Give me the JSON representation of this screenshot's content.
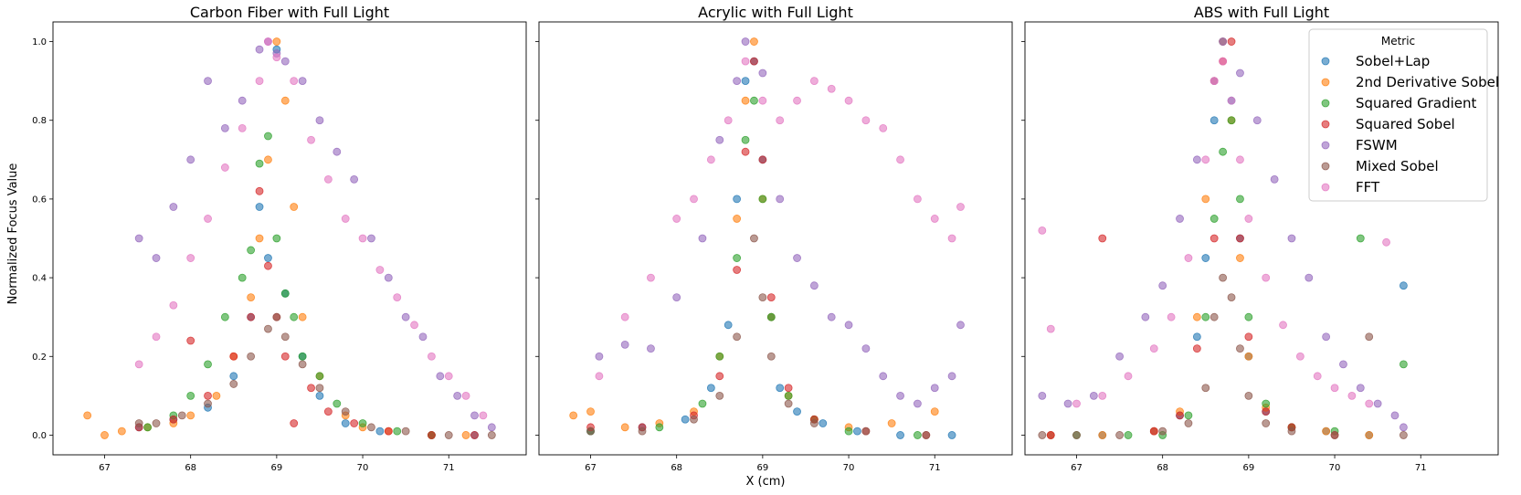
{
  "figure": {
    "ylabel": "Normalized Focus Value",
    "xlabel": "X (cm)"
  },
  "legend": {
    "title": "Metric",
    "placement": "upper-right of third panel",
    "entries": [
      {
        "name": "Sobel+Lap",
        "color": "#1f77b4"
      },
      {
        "name": "2nd Derivative Sobel",
        "color": "#ff7f0e"
      },
      {
        "name": "Squared Gradient",
        "color": "#2ca02c"
      },
      {
        "name": "Squared Sobel",
        "color": "#d62728"
      },
      {
        "name": "FSWM",
        "color": "#9467bd"
      },
      {
        "name": "Mixed Sobel",
        "color": "#8c564b"
      },
      {
        "name": "FFT",
        "color": "#e377c2"
      }
    ]
  },
  "chart_data": [
    {
      "type": "scatter",
      "title": "Carbon Fiber with Full Light",
      "xlim": [
        66.4,
        71.9
      ],
      "ylim": [
        -0.05,
        1.05
      ],
      "xticks": [
        67,
        68,
        69,
        70,
        71
      ],
      "yticks": [
        0.0,
        0.2,
        0.4,
        0.6,
        0.8,
        1.0
      ],
      "ytick_labels": [
        "0.0",
        "0.2",
        "0.4",
        "0.6",
        "0.8",
        "1.0"
      ],
      "series": [
        {
          "name": "Sobel+Lap",
          "x": [
            67.4,
            67.8,
            68.2,
            68.5,
            68.7,
            68.8,
            68.9,
            69.0,
            69.1,
            69.3,
            69.5,
            69.8,
            70.2,
            70.8,
            71.3
          ],
          "y": [
            0.02,
            0.04,
            0.07,
            0.15,
            0.3,
            0.58,
            0.45,
            0.98,
            0.36,
            0.2,
            0.1,
            0.03,
            0.01,
            0.0,
            0.0
          ]
        },
        {
          "name": "2nd Derivative Sobel",
          "x": [
            66.8,
            67.0,
            67.2,
            67.5,
            67.8,
            68.0,
            68.3,
            68.5,
            68.7,
            68.8,
            68.9,
            69.0,
            69.1,
            69.2,
            69.3,
            69.5,
            69.8,
            70.0,
            70.3,
            70.8,
            71.2
          ],
          "y": [
            0.05,
            0.0,
            0.01,
            0.02,
            0.03,
            0.05,
            0.1,
            0.2,
            0.35,
            0.5,
            0.7,
            1.0,
            0.85,
            0.58,
            0.3,
            0.15,
            0.05,
            0.02,
            0.01,
            0.0,
            0.0
          ]
        },
        {
          "name": "Squared Gradient",
          "x": [
            67.5,
            67.8,
            68.0,
            68.2,
            68.4,
            68.6,
            68.7,
            68.8,
            68.9,
            69.0,
            69.1,
            69.2,
            69.3,
            69.5,
            69.7,
            70.0,
            70.4,
            70.8
          ],
          "y": [
            0.02,
            0.05,
            0.1,
            0.18,
            0.3,
            0.4,
            0.47,
            0.69,
            0.76,
            0.5,
            0.36,
            0.3,
            0.2,
            0.15,
            0.08,
            0.03,
            0.01,
            0.0
          ]
        },
        {
          "name": "Squared Sobel",
          "x": [
            67.4,
            67.8,
            68.0,
            68.2,
            68.5,
            68.7,
            68.8,
            68.9,
            69.0,
            69.1,
            69.2,
            69.4,
            69.6,
            69.9,
            70.3,
            70.8,
            71.3
          ],
          "y": [
            0.02,
            0.04,
            0.24,
            0.1,
            0.2,
            0.3,
            0.62,
            0.43,
            0.3,
            0.2,
            0.03,
            0.12,
            0.06,
            0.03,
            0.01,
            0.0,
            0.0
          ]
        },
        {
          "name": "FSWM",
          "x": [
            67.4,
            67.6,
            67.8,
            68.0,
            68.2,
            68.4,
            68.6,
            68.8,
            68.9,
            69.0,
            69.1,
            69.3,
            69.5,
            69.7,
            69.9,
            70.1,
            70.3,
            70.5,
            70.7,
            70.9,
            71.1,
            71.3,
            71.5
          ],
          "y": [
            0.5,
            0.45,
            0.58,
            0.7,
            0.9,
            0.78,
            0.85,
            0.98,
            1.0,
            0.97,
            0.95,
            0.9,
            0.8,
            0.72,
            0.65,
            0.5,
            0.4,
            0.3,
            0.25,
            0.15,
            0.1,
            0.05,
            0.02
          ]
        },
        {
          "name": "Mixed Sobel",
          "x": [
            67.4,
            67.6,
            67.9,
            68.2,
            68.5,
            68.7,
            68.9,
            69.0,
            69.1,
            69.3,
            69.5,
            69.8,
            70.1,
            70.5,
            71.0,
            71.5
          ],
          "y": [
            0.03,
            0.03,
            0.05,
            0.08,
            0.13,
            0.2,
            0.27,
            0.3,
            0.25,
            0.18,
            0.12,
            0.06,
            0.02,
            0.01,
            0.0,
            0.0
          ]
        },
        {
          "name": "FFT",
          "x": [
            67.4,
            67.6,
            67.8,
            68.0,
            68.2,
            68.4,
            68.6,
            68.8,
            68.9,
            69.0,
            69.2,
            69.4,
            69.6,
            69.8,
            70.0,
            70.2,
            70.4,
            70.6,
            70.8,
            71.0,
            71.2,
            71.4
          ],
          "y": [
            0.18,
            0.25,
            0.33,
            0.45,
            0.55,
            0.68,
            0.78,
            0.9,
            1.0,
            0.96,
            0.9,
            0.75,
            0.65,
            0.55,
            0.5,
            0.42,
            0.35,
            0.28,
            0.2,
            0.15,
            0.1,
            0.05
          ]
        }
      ]
    },
    {
      "type": "scatter",
      "title": "Acrylic with Full Light",
      "xlim": [
        66.4,
        71.9
      ],
      "ylim": [
        -0.05,
        1.05
      ],
      "xticks": [
        67,
        68,
        69,
        70,
        71
      ],
      "yticks": [
        0.0,
        0.2,
        0.4,
        0.6,
        0.8,
        1.0
      ],
      "ytick_labels": [],
      "series": [
        {
          "name": "Sobel+Lap",
          "x": [
            67.0,
            67.6,
            68.1,
            68.4,
            68.6,
            68.7,
            68.8,
            68.9,
            69.0,
            69.1,
            69.2,
            69.4,
            69.7,
            70.1,
            70.6,
            71.2
          ],
          "y": [
            0.01,
            0.02,
            0.04,
            0.12,
            0.28,
            0.6,
            0.9,
            0.95,
            0.7,
            0.3,
            0.12,
            0.06,
            0.03,
            0.01,
            0.0,
            0.0
          ]
        },
        {
          "name": "2nd Derivative Sobel",
          "x": [
            66.8,
            67.0,
            67.4,
            67.8,
            68.2,
            68.5,
            68.7,
            68.8,
            68.9,
            69.0,
            69.1,
            69.3,
            69.6,
            70.0,
            70.5,
            71.0
          ],
          "y": [
            0.05,
            0.06,
            0.02,
            0.03,
            0.06,
            0.2,
            0.55,
            0.85,
            1.0,
            0.6,
            0.3,
            0.1,
            0.04,
            0.02,
            0.03,
            0.06
          ]
        },
        {
          "name": "Squared Gradient",
          "x": [
            67.0,
            67.8,
            68.3,
            68.5,
            68.7,
            68.8,
            68.9,
            69.0,
            69.1,
            69.3,
            69.6,
            70.0,
            70.8
          ],
          "y": [
            0.01,
            0.02,
            0.08,
            0.2,
            0.45,
            0.75,
            0.85,
            0.6,
            0.3,
            0.1,
            0.04,
            0.01,
            0.0
          ]
        },
        {
          "name": "Squared Sobel",
          "x": [
            67.0,
            67.6,
            68.2,
            68.5,
            68.7,
            68.8,
            68.9,
            69.0,
            69.1,
            69.3,
            69.6,
            70.2,
            70.9
          ],
          "y": [
            0.02,
            0.02,
            0.05,
            0.15,
            0.42,
            0.72,
            0.95,
            0.7,
            0.35,
            0.12,
            0.04,
            0.01,
            0.0
          ]
        },
        {
          "name": "FSWM",
          "x": [
            67.1,
            67.4,
            67.7,
            68.0,
            68.3,
            68.5,
            68.7,
            68.8,
            69.0,
            69.2,
            69.4,
            69.6,
            69.8,
            70.0,
            70.2,
            70.4,
            70.6,
            70.8,
            71.0,
            71.2,
            71.3
          ],
          "y": [
            0.2,
            0.23,
            0.22,
            0.35,
            0.5,
            0.75,
            0.9,
            1.0,
            0.92,
            0.6,
            0.45,
            0.38,
            0.3,
            0.28,
            0.22,
            0.15,
            0.1,
            0.08,
            0.12,
            0.15,
            0.28
          ]
        },
        {
          "name": "Mixed Sobel",
          "x": [
            67.0,
            67.6,
            68.2,
            68.5,
            68.7,
            68.9,
            69.0,
            69.1,
            69.3,
            69.6,
            70.2,
            70.9
          ],
          "y": [
            0.01,
            0.01,
            0.04,
            0.1,
            0.25,
            0.5,
            0.35,
            0.2,
            0.08,
            0.03,
            0.01,
            0.0
          ]
        },
        {
          "name": "FFT",
          "x": [
            67.1,
            67.4,
            67.7,
            68.0,
            68.2,
            68.4,
            68.6,
            68.8,
            69.0,
            69.2,
            69.4,
            69.6,
            69.8,
            70.0,
            70.2,
            70.4,
            70.6,
            70.8,
            71.0,
            71.2,
            71.3
          ],
          "y": [
            0.15,
            0.3,
            0.4,
            0.55,
            0.6,
            0.7,
            0.8,
            0.95,
            0.85,
            0.8,
            0.85,
            0.9,
            0.88,
            0.85,
            0.8,
            0.78,
            0.7,
            0.6,
            0.55,
            0.5,
            0.58
          ]
        }
      ]
    },
    {
      "type": "scatter",
      "title": "ABS with Full Light",
      "xlim": [
        66.4,
        71.9
      ],
      "ylim": [
        -0.05,
        1.05
      ],
      "xticks": [
        67,
        68,
        69,
        70,
        71
      ],
      "yticks": [
        0.0,
        0.2,
        0.4,
        0.6,
        0.8,
        1.0
      ],
      "ytick_labels": [],
      "series": [
        {
          "name": "Sobel+Lap",
          "x": [
            66.7,
            67.3,
            67.9,
            68.2,
            68.4,
            68.5,
            68.6,
            68.7,
            68.8,
            68.9,
            69.0,
            69.2,
            69.5,
            69.9,
            70.4,
            70.8
          ],
          "y": [
            0.0,
            0.0,
            0.01,
            0.05,
            0.25,
            0.45,
            0.8,
            1.0,
            0.85,
            0.5,
            0.2,
            0.06,
            0.02,
            0.01,
            0.0,
            0.38
          ]
        },
        {
          "name": "2nd Derivative Sobel",
          "x": [
            66.7,
            67.3,
            67.9,
            68.2,
            68.4,
            68.5,
            68.6,
            68.7,
            68.8,
            68.9,
            69.0,
            69.2,
            69.5,
            69.9,
            70.4
          ],
          "y": [
            0.0,
            0.0,
            0.01,
            0.06,
            0.3,
            0.6,
            0.9,
            1.0,
            0.8,
            0.45,
            0.2,
            0.07,
            0.02,
            0.01,
            0.0
          ]
        },
        {
          "name": "Squared Gradient",
          "x": [
            67.0,
            67.6,
            68.0,
            68.3,
            68.5,
            68.6,
            68.7,
            68.8,
            68.9,
            69.0,
            69.2,
            69.5,
            70.0,
            70.3,
            70.8
          ],
          "y": [
            0.0,
            0.0,
            0.0,
            0.05,
            0.3,
            0.55,
            0.72,
            0.8,
            0.6,
            0.3,
            0.08,
            0.02,
            0.01,
            0.5,
            0.18
          ]
        },
        {
          "name": "Squared Sobel",
          "x": [
            66.7,
            67.3,
            67.9,
            68.2,
            68.4,
            68.6,
            68.7,
            68.8,
            68.9,
            69.0,
            69.2,
            69.5,
            70.0
          ],
          "y": [
            0.0,
            0.5,
            0.01,
            0.05,
            0.22,
            0.5,
            0.95,
            1.0,
            0.5,
            0.25,
            0.06,
            0.02,
            0.0
          ]
        },
        {
          "name": "FSWM",
          "x": [
            66.6,
            66.9,
            67.2,
            67.5,
            67.8,
            68.0,
            68.2,
            68.4,
            68.6,
            68.7,
            68.9,
            69.1,
            69.3,
            69.5,
            69.7,
            69.9,
            70.1,
            70.3,
            70.5,
            70.7,
            70.8
          ],
          "y": [
            0.1,
            0.08,
            0.1,
            0.2,
            0.3,
            0.38,
            0.55,
            0.7,
            0.9,
            1.0,
            0.92,
            0.8,
            0.65,
            0.5,
            0.4,
            0.25,
            0.18,
            0.12,
            0.08,
            0.05,
            0.02
          ]
        },
        {
          "name": "Mixed Sobel",
          "x": [
            66.6,
            67.0,
            67.5,
            68.0,
            68.3,
            68.5,
            68.6,
            68.7,
            68.8,
            68.9,
            69.0,
            69.2,
            69.5,
            70.0,
            70.4,
            70.8
          ],
          "y": [
            0.0,
            0.0,
            0.0,
            0.01,
            0.03,
            0.12,
            0.3,
            0.4,
            0.35,
            0.22,
            0.1,
            0.03,
            0.01,
            0.0,
            0.25,
            0.0
          ]
        },
        {
          "name": "FFT",
          "x": [
            66.6,
            66.7,
            67.0,
            67.3,
            67.6,
            67.9,
            68.1,
            68.3,
            68.5,
            68.6,
            68.7,
            68.8,
            68.9,
            69.0,
            69.2,
            69.4,
            69.6,
            69.8,
            70.0,
            70.2,
            70.4,
            70.6
          ],
          "y": [
            0.52,
            0.27,
            0.08,
            0.1,
            0.15,
            0.22,
            0.3,
            0.45,
            0.7,
            0.9,
            0.95,
            0.85,
            0.7,
            0.55,
            0.4,
            0.28,
            0.2,
            0.15,
            0.12,
            0.1,
            0.08,
            0.49
          ]
        }
      ]
    }
  ]
}
